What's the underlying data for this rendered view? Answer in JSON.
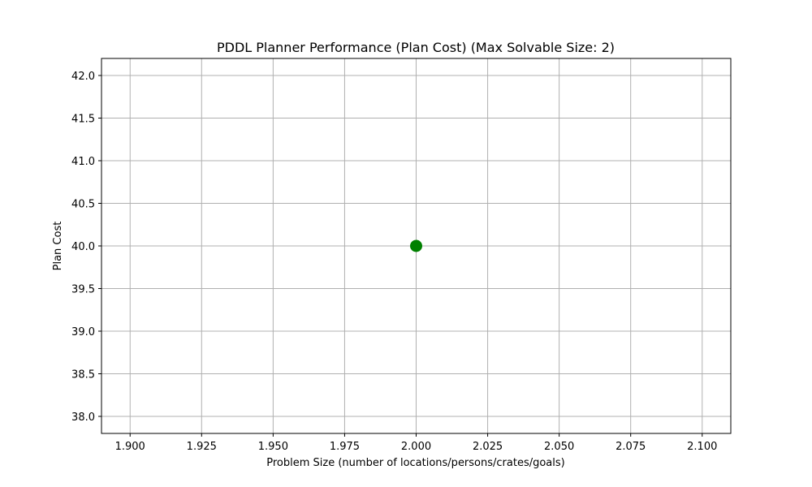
{
  "chart_data": {
    "type": "scatter",
    "title": "PDDL Planner Performance (Plan Cost) (Max Solvable Size: 2)",
    "xlabel": "Problem Size (number of locations/persons/crates/goals)",
    "ylabel": "Plan Cost",
    "xlim": [
      1.89,
      2.11
    ],
    "ylim": [
      37.8,
      42.2
    ],
    "xticks": [
      1.9,
      1.925,
      1.95,
      1.975,
      2.0,
      2.025,
      2.05,
      2.075,
      2.1
    ],
    "xtick_labels": [
      "1.900",
      "1.925",
      "1.950",
      "1.975",
      "2.000",
      "2.025",
      "2.050",
      "2.075",
      "2.100"
    ],
    "yticks": [
      38.0,
      38.5,
      39.0,
      39.5,
      40.0,
      40.5,
      41.0,
      41.5,
      42.0
    ],
    "ytick_labels": [
      "38.0",
      "38.5",
      "39.0",
      "39.5",
      "40.0",
      "40.5",
      "41.0",
      "41.5",
      "42.0"
    ],
    "grid": true,
    "series": [
      {
        "x": [
          2
        ],
        "y": [
          40
        ],
        "color": "#008000"
      }
    ]
  }
}
